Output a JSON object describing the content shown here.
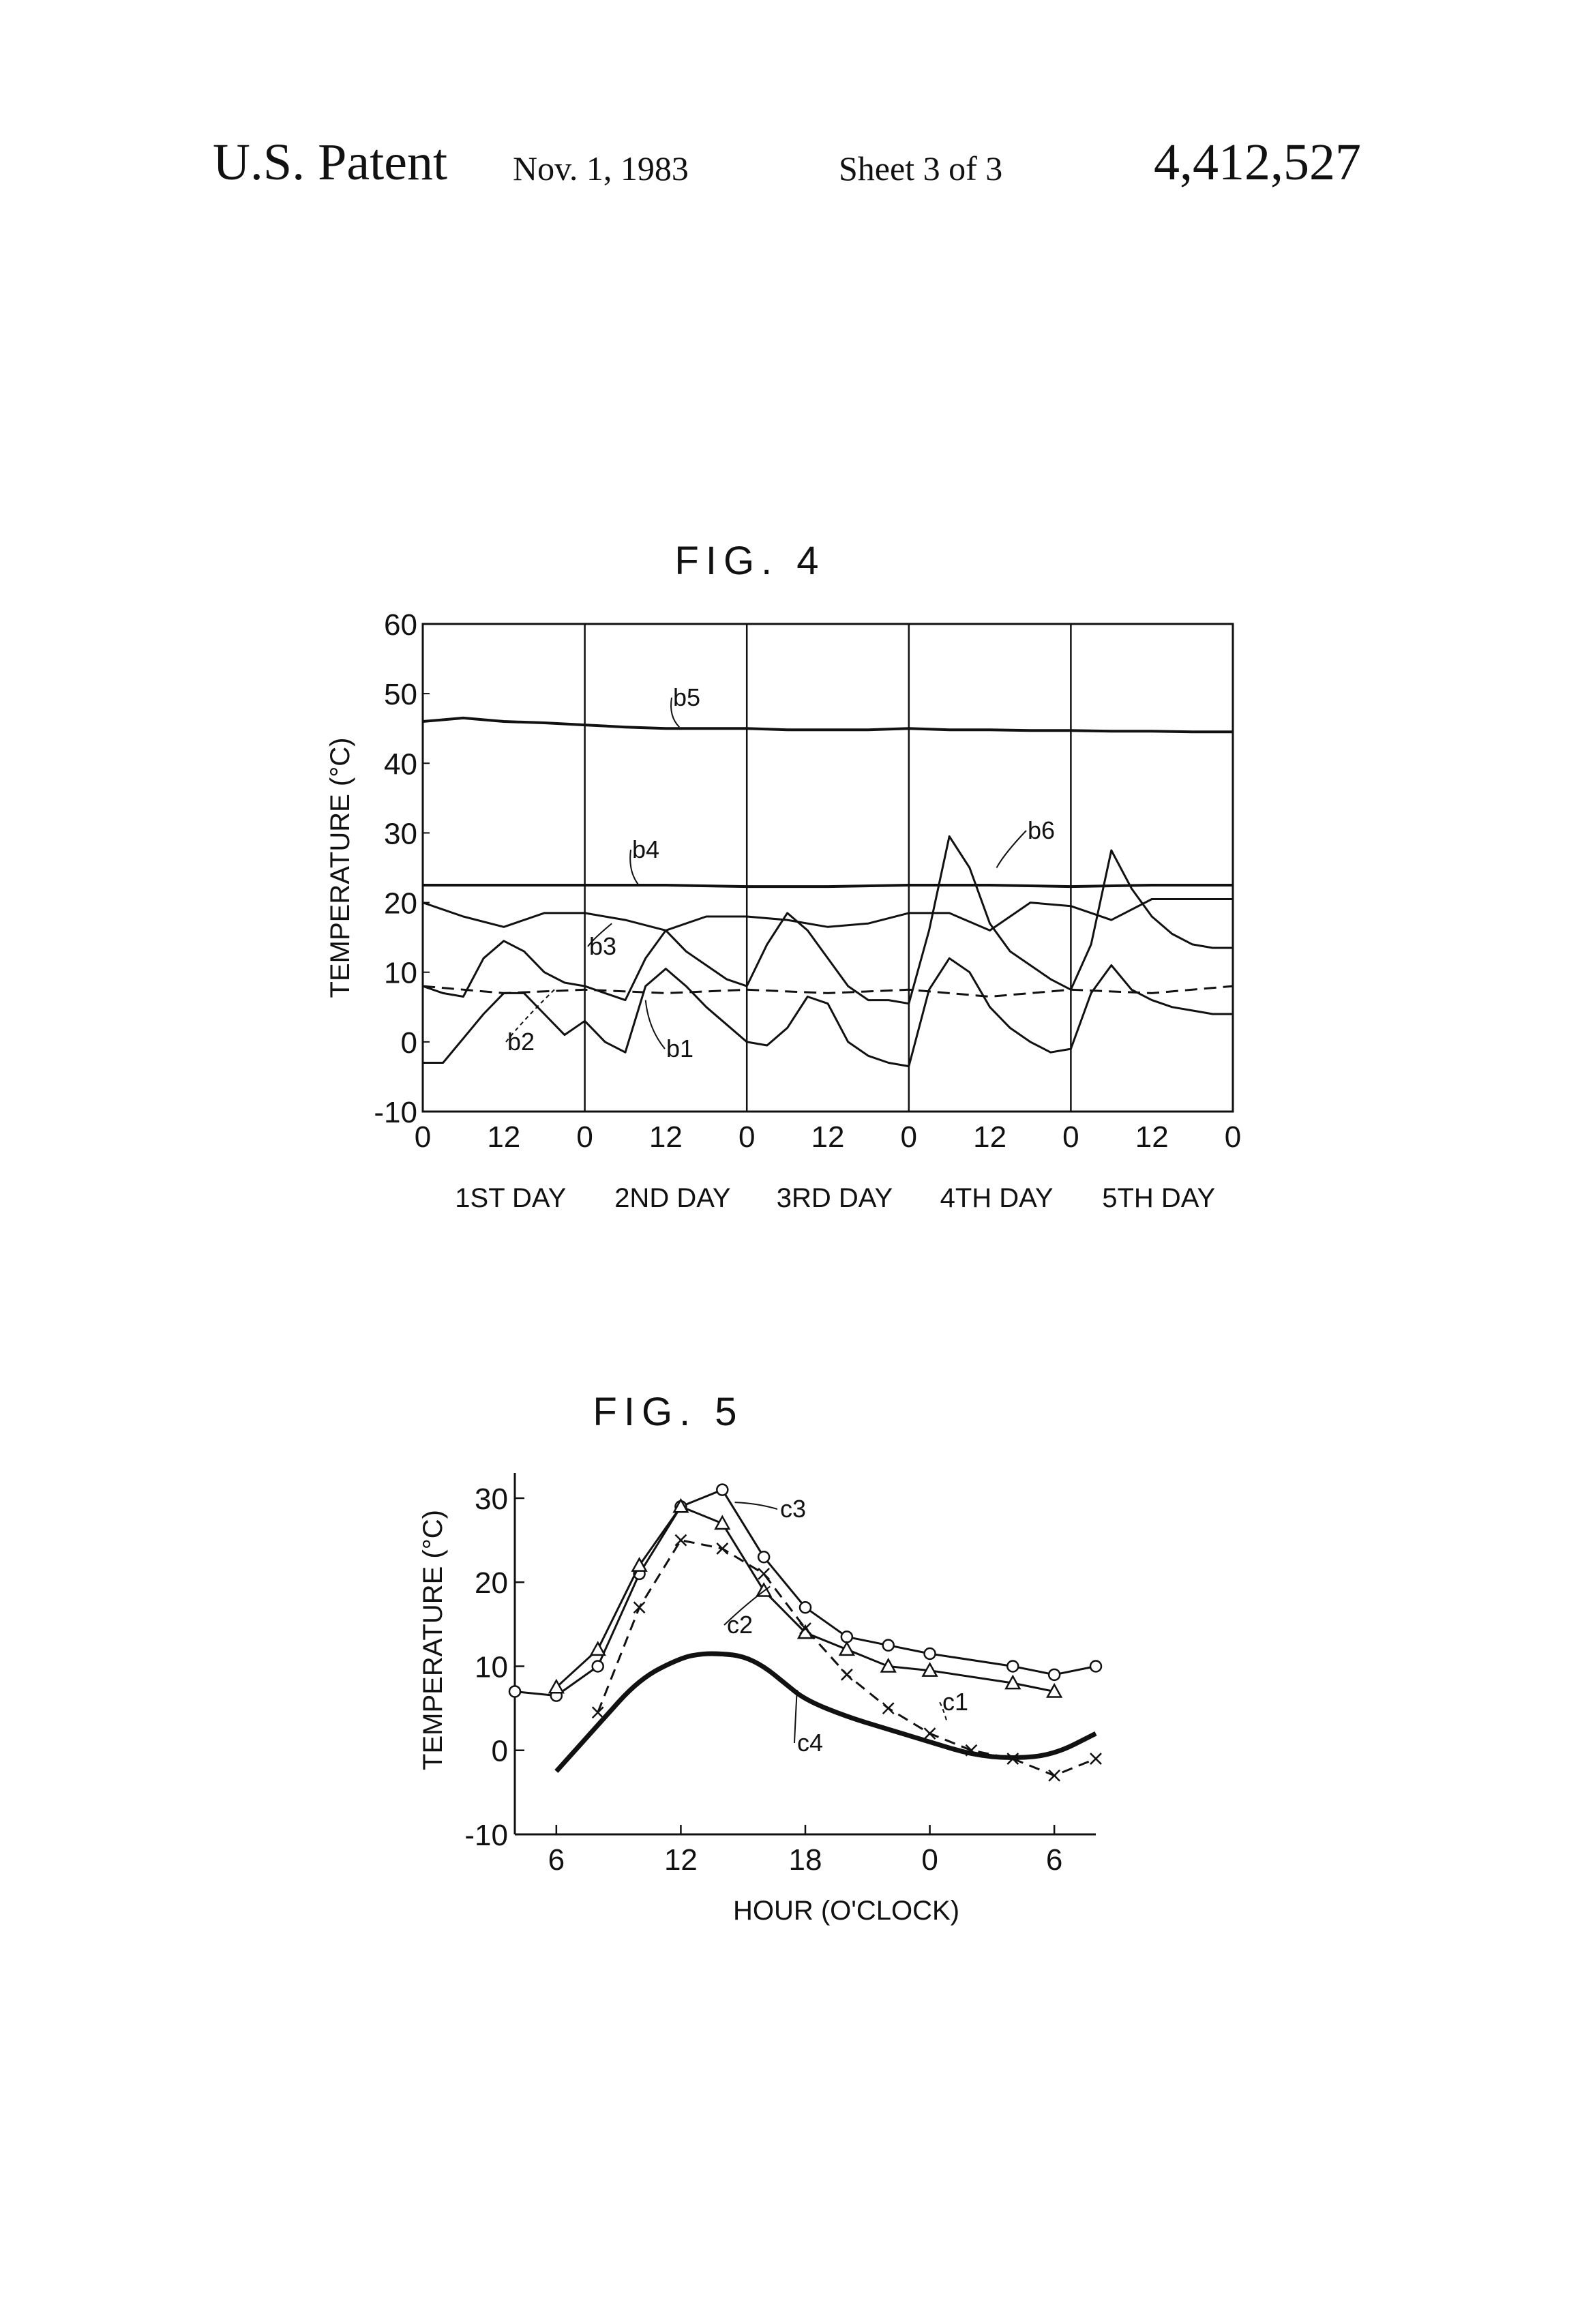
{
  "header": {
    "title": "U.S. Patent",
    "date": "Nov. 1, 1983",
    "sheet": "Sheet 3 of 3",
    "number": "4,412,527"
  },
  "chart_data": [
    {
      "title": "FIG. 4",
      "type": "line",
      "ylabel": "TEMPERATURE (°C)",
      "xlabel": "",
      "ylim": [
        -10,
        60
      ],
      "yticks": [
        "60",
        "50",
        "40",
        "30",
        "20",
        "10",
        "0",
        "-10"
      ],
      "x_tick_labels": [
        "0",
        "12",
        "0",
        "12",
        "0",
        "12",
        "0",
        "12",
        "0",
        "12",
        "0"
      ],
      "day_labels": [
        "1ST DAY",
        "2ND DAY",
        "3RD DAY",
        "4TH DAY",
        "5TH DAY"
      ],
      "xlim_hours": [
        0,
        120
      ],
      "grid": "vertical lines at day boundaries",
      "series": [
        {
          "name": "b5",
          "style": "solid",
          "x": [
            0,
            6,
            12,
            18,
            24,
            30,
            36,
            42,
            48,
            54,
            60,
            66,
            72,
            78,
            84,
            90,
            96,
            102,
            108,
            114,
            120
          ],
          "y": [
            46,
            46.5,
            46,
            45.8,
            45.5,
            45.2,
            45,
            45,
            45,
            44.8,
            44.8,
            44.8,
            45,
            44.8,
            44.8,
            44.7,
            44.7,
            44.6,
            44.6,
            44.5,
            44.5
          ]
        },
        {
          "name": "b4",
          "style": "solid",
          "x": [
            0,
            12,
            24,
            36,
            48,
            60,
            72,
            84,
            96,
            108,
            120
          ],
          "y": [
            22.5,
            22.5,
            22.5,
            22.5,
            22.3,
            22.3,
            22.5,
            22.5,
            22.3,
            22.5,
            22.5
          ]
        },
        {
          "name": "b3",
          "style": "solid",
          "x": [
            0,
            6,
            12,
            18,
            24,
            30,
            36,
            42,
            48,
            54,
            60,
            66,
            72,
            78,
            84,
            90,
            96,
            102,
            108,
            114,
            120
          ],
          "y": [
            20,
            18,
            16.5,
            18.5,
            18.5,
            17.5,
            16,
            18,
            18,
            17.5,
            16.5,
            17,
            18.5,
            18.5,
            16,
            20,
            19.5,
            17.5,
            20.5,
            20.5,
            20.5
          ]
        },
        {
          "name": "b6",
          "style": "solid",
          "x": [
            0,
            3,
            6,
            9,
            12,
            15,
            18,
            21,
            24,
            27,
            30,
            33,
            36,
            39,
            42,
            45,
            48,
            51,
            54,
            57,
            60,
            63,
            66,
            69,
            72,
            75,
            78,
            81,
            84,
            87,
            90,
            93,
            96,
            99,
            102,
            105,
            108,
            111,
            114,
            117,
            120
          ],
          "y": [
            8,
            7,
            6.5,
            12,
            14.5,
            13,
            10,
            8.5,
            8,
            7,
            6,
            12,
            16,
            13,
            11,
            9,
            8,
            14,
            18.5,
            16,
            12,
            8,
            6,
            6,
            5.5,
            16,
            29.5,
            25,
            17,
            13,
            11,
            9,
            7.5,
            14,
            27.5,
            22,
            18,
            15.5,
            14,
            13.5,
            13.5
          ]
        },
        {
          "name": "b2",
          "style": "dashed",
          "x": [
            0,
            12,
            24,
            36,
            48,
            60,
            72,
            84,
            96,
            108,
            120
          ],
          "y": [
            8,
            7,
            7.5,
            7,
            7.5,
            7,
            7.5,
            6.5,
            7.5,
            7,
            8
          ]
        },
        {
          "name": "b1",
          "style": "solid",
          "x": [
            0,
            3,
            6,
            9,
            12,
            15,
            18,
            21,
            24,
            27,
            30,
            33,
            36,
            39,
            42,
            45,
            48,
            51,
            54,
            57,
            60,
            63,
            66,
            69,
            72,
            75,
            78,
            81,
            84,
            87,
            90,
            93,
            96,
            99,
            102,
            105,
            108,
            111,
            114,
            117,
            120
          ],
          "y": [
            -3,
            -3,
            0.5,
            4,
            7,
            7,
            4,
            1,
            3,
            0,
            -1.5,
            8,
            10.5,
            8,
            5,
            2.5,
            0,
            -0.5,
            2,
            6.5,
            5.5,
            0,
            -2,
            -3,
            -3.5,
            7.5,
            12,
            10,
            5,
            2,
            0,
            -1.5,
            -1,
            7,
            11,
            7.5,
            6,
            5,
            4.5,
            4,
            4
          ]
        }
      ]
    },
    {
      "title": "FIG. 5",
      "type": "line",
      "ylabel": "TEMPERATURE (°C)",
      "xlabel": "HOUR (O'CLOCK)",
      "ylim": [
        -10,
        33
      ],
      "yticks": [
        "30",
        "20",
        "10",
        "0",
        "-10"
      ],
      "x_tick_labels": [
        "6",
        "12",
        "18",
        "0",
        "6"
      ],
      "xlim_hours": [
        4,
        32
      ],
      "series": [
        {
          "name": "c3",
          "marker": "circle",
          "style": "solid",
          "x": [
            4,
            6,
            8,
            10,
            12,
            14,
            16,
            18,
            20,
            22,
            24,
            28,
            30,
            32
          ],
          "y": [
            7,
            6.5,
            10,
            21,
            29,
            31,
            23,
            17,
            13.5,
            12.5,
            11.5,
            10,
            9,
            10
          ]
        },
        {
          "name": "c2",
          "marker": "triangle",
          "style": "solid",
          "x": [
            6,
            8,
            10,
            12,
            14,
            16,
            18,
            20,
            22,
            24,
            28,
            30
          ],
          "y": [
            7.5,
            12,
            22,
            29,
            27,
            19,
            14,
            12,
            10,
            9.5,
            8,
            7
          ]
        },
        {
          "name": "c1",
          "marker": "x",
          "style": "dashed",
          "x": [
            8,
            10,
            12,
            14,
            16,
            18,
            20,
            22,
            24,
            26,
            28,
            30,
            32
          ],
          "y": [
            4.5,
            17,
            25,
            24,
            21,
            14.5,
            9,
            5,
            2,
            0,
            -1,
            -3,
            -1
          ]
        },
        {
          "name": "c4",
          "marker": "none",
          "style": "bold",
          "x": [
            6,
            8,
            10,
            12,
            13,
            14,
            15,
            16,
            17,
            18,
            20,
            22,
            24,
            26,
            28,
            30,
            32
          ],
          "y": [
            -2.5,
            3,
            8.5,
            11,
            11.5,
            11.5,
            11.2,
            10,
            8,
            6,
            4,
            2.5,
            1,
            -0.5,
            -1,
            -0.5,
            2
          ]
        }
      ]
    }
  ]
}
